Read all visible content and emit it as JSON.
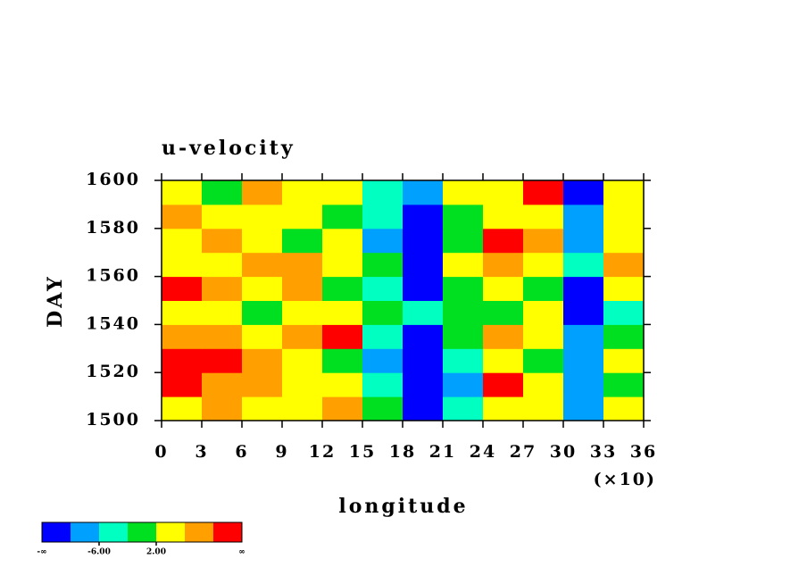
{
  "chart_data": {
    "type": "heatmap",
    "title": "u-velocity",
    "x_label": "longitude",
    "x_multiplier": "(×10)",
    "y_label": "DAY",
    "xlim": [
      0,
      36
    ],
    "xticks": [
      0,
      3,
      6,
      9,
      12,
      15,
      18,
      21,
      24,
      27,
      30,
      33,
      36
    ],
    "ylim": [
      1500,
      1600
    ],
    "yticks": [
      1500,
      1520,
      1540,
      1560,
      1580,
      1600
    ],
    "x": [
      1.5,
      4.5,
      7.5,
      10.5,
      13.5,
      16.5,
      19.5,
      22.5,
      25.5,
      28.5,
      31.5,
      34.5
    ],
    "y": [
      1505,
      1515,
      1525,
      1535,
      1545,
      1555,
      1565,
      1575,
      1585,
      1595
    ],
    "z": [
      [
        4,
        8,
        4,
        2,
        6,
        0,
        -12,
        -4,
        4,
        2,
        -8,
        2
      ],
      [
        10,
        6,
        8,
        4,
        2,
        -4,
        -12,
        -8,
        10,
        4,
        -10,
        0
      ],
      [
        12,
        12,
        8,
        4,
        0,
        -8,
        -12,
        -4,
        2,
        0,
        -10,
        4
      ],
      [
        8,
        6,
        4,
        8,
        10,
        -4,
        -14,
        -2,
        6,
        4,
        -10,
        0
      ],
      [
        4,
        2,
        0,
        2,
        4,
        0,
        -6,
        -2,
        0,
        2,
        -12,
        -4
      ],
      [
        10,
        8,
        4,
        6,
        -2,
        -6,
        -12,
        0,
        4,
        -2,
        -12,
        2
      ],
      [
        4,
        2,
        6,
        8,
        4,
        -2,
        -14,
        2,
        6,
        4,
        -4,
        8
      ],
      [
        2,
        6,
        4,
        0,
        4,
        -8,
        -14,
        0,
        10,
        6,
        -8,
        2
      ],
      [
        8,
        4,
        2,
        4,
        -2,
        -4,
        -12,
        0,
        4,
        2,
        -10,
        4
      ],
      [
        4,
        0,
        6,
        4,
        2,
        -4,
        -8,
        2,
        4,
        12,
        -12,
        2
      ]
    ],
    "colorbar": {
      "colors": [
        "#0000ff",
        "#00a0ff",
        "#00ffc0",
        "#00e020",
        "#ffff00",
        "#ffa000",
        "#ff0000"
      ],
      "levels": [
        -10,
        -6,
        -2,
        2,
        6,
        10
      ],
      "low_label": "-∞",
      "high_label": "∞",
      "ticks": [
        {
          "value": -6,
          "label": "-6.00"
        },
        {
          "value": 2,
          "label": "2.00"
        }
      ]
    }
  }
}
